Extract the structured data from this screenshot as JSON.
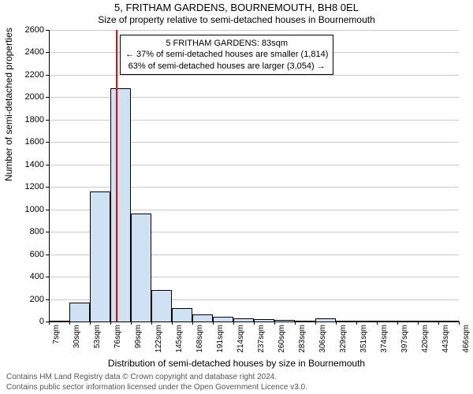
{
  "title": "5, FRITHAM GARDENS, BOURNEMOUTH, BH8 0EL",
  "subtitle": "Size of property relative to semi-detached houses in Bournemouth",
  "ylabel": "Number of semi-detached properties",
  "xlabel": "Distribution of semi-detached houses by size in Bournemouth",
  "footer_line1": "Contains HM Land Registry data © Crown copyright and database right 2024.",
  "footer_line2": "Contains public sector information licensed under the Open Government Licence v3.0.",
  "chart": {
    "type": "histogram",
    "background_color": "#ffffff",
    "grid_color": "#cccccc",
    "axis_color": "#000000",
    "bar_fill": "#cfe2f3",
    "bar_border": "#000000",
    "bar_border_width": 0.5,
    "ref_line_color": "#ff0000",
    "ref_line_value_sqm": 83,
    "x_start": 7,
    "x_step": 23,
    "x_count": 21,
    "x_unit": "sqm",
    "ylim": [
      0,
      2600
    ],
    "ytick_step": 200,
    "categories": [
      "7sqm",
      "30sqm",
      "53sqm",
      "76sqm",
      "99sqm",
      "122sqm",
      "145sqm",
      "168sqm",
      "191sqm",
      "214sqm",
      "237sqm",
      "260sqm",
      "283sqm",
      "306sqm",
      "329sqm",
      "351sqm",
      "374sqm",
      "397sqm",
      "420sqm",
      "443sqm",
      "466sqm"
    ],
    "values": [
      0,
      170,
      1160,
      2080,
      960,
      280,
      120,
      60,
      40,
      25,
      20,
      15,
      10,
      25,
      0,
      0,
      0,
      0,
      0,
      0
    ],
    "title_fontsize": 13,
    "subtitle_fontsize": 12,
    "label_fontsize": 12,
    "tick_fontsize": 11,
    "xtick_fontsize": 10,
    "footer_fontsize": 10,
    "footer_color": "#555555"
  },
  "annotation": {
    "line1": "5 FRITHAM GARDENS: 83sqm",
    "line2": "← 37% of semi-detached houses are smaller (1,814)",
    "line3": "63% of semi-detached houses are larger (3,054) →",
    "box_border": "#000000",
    "box_bg": "#ffffff",
    "fontsize": 11
  }
}
